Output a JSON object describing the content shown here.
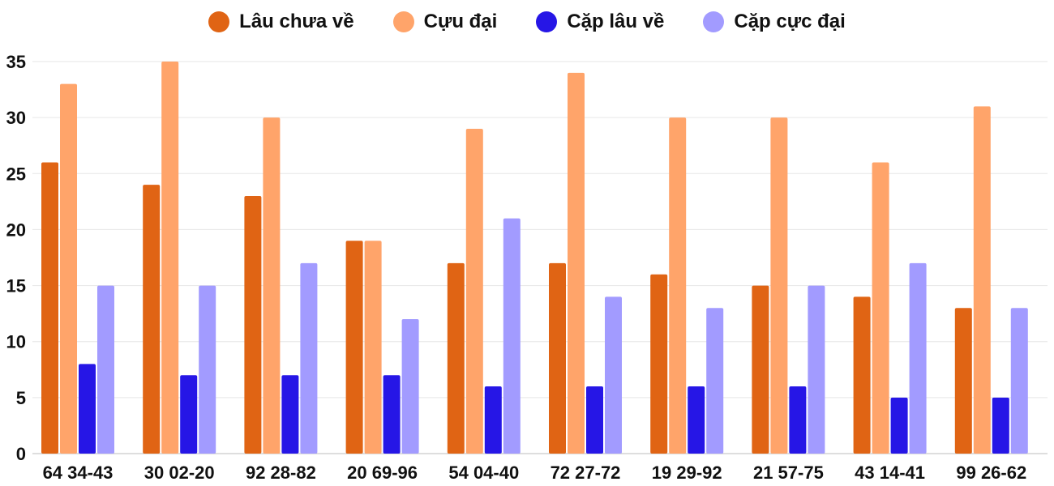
{
  "chart_data": {
    "type": "bar",
    "title": "",
    "xlabel": "",
    "ylabel": "",
    "ylim": [
      0,
      35
    ],
    "yticks": [
      0,
      5,
      10,
      15,
      20,
      25,
      30,
      35
    ],
    "grid": true,
    "legend_position": "top-center",
    "categories": [
      "64 34-43",
      "30 02-20",
      "92 28-82",
      "20 69-96",
      "54 04-40",
      "72 27-72",
      "19 29-92",
      "21 57-75",
      "43 14-41",
      "99 26-62"
    ],
    "series": [
      {
        "name": "Lâu chưa về",
        "color": "#E06414",
        "values": [
          26,
          24,
          23,
          19,
          17,
          17,
          16,
          15,
          14,
          13
        ]
      },
      {
        "name": "Cựu đại",
        "color": "#FFA46A",
        "values": [
          33,
          35,
          30,
          19,
          29,
          34,
          30,
          30,
          26,
          31
        ]
      },
      {
        "name": "Cặp lâu về",
        "color": "#2616E6",
        "values": [
          8,
          7,
          7,
          7,
          6,
          6,
          6,
          6,
          5,
          5
        ]
      },
      {
        "name": "Cặp cực đại",
        "color": "#A29BFF",
        "values": [
          15,
          15,
          17,
          12,
          21,
          14,
          13,
          15,
          17,
          13
        ]
      }
    ]
  }
}
